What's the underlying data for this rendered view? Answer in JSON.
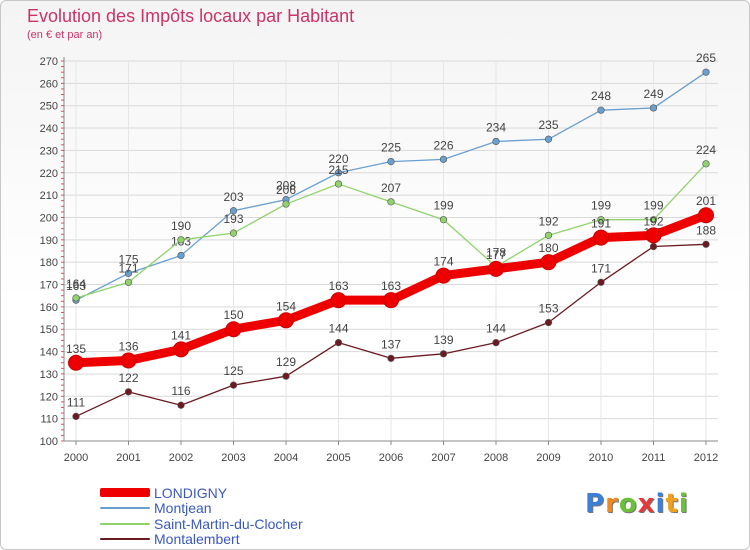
{
  "chart_data": {
    "type": "line",
    "title": "Evolution des Impôts locaux par Habitant",
    "subtitle": "(en € et par an)",
    "xlabel": "",
    "ylabel": "",
    "ylim": [
      100,
      270
    ],
    "yticks": [
      100,
      110,
      120,
      130,
      140,
      150,
      160,
      170,
      180,
      190,
      200,
      210,
      220,
      230,
      240,
      250,
      260,
      270
    ],
    "categories": [
      "2000",
      "2001",
      "2002",
      "2003",
      "2004",
      "2005",
      "2006",
      "2007",
      "2008",
      "2009",
      "2010",
      "2011",
      "2012"
    ],
    "grid": true,
    "series": [
      {
        "name": "Montjean",
        "color": "#6a9fd0",
        "emphasis": false,
        "values": [
          163,
          175,
          183,
          203,
          208,
          220,
          225,
          226,
          234,
          235,
          248,
          249,
          265
        ]
      },
      {
        "name": "Saint-Martin-du-Clocher",
        "color": "#8fd36a",
        "emphasis": false,
        "values": [
          164,
          171,
          190,
          193,
          206,
          215,
          207,
          199,
          178,
          192,
          199,
          199,
          224
        ]
      },
      {
        "name": "Montalembert",
        "color": "#6b1a22",
        "emphasis": false,
        "values": [
          111,
          122,
          116,
          125,
          129,
          144,
          137,
          139,
          144,
          153,
          171,
          187,
          188
        ]
      },
      {
        "name": "LONDIGNY",
        "color": "#ee0000",
        "emphasis": true,
        "values": [
          135,
          136,
          141,
          150,
          154,
          163,
          163,
          174,
          177,
          180,
          191,
          192,
          201
        ]
      }
    ],
    "legend_order": [
      "LONDIGNY",
      "Montjean",
      "Saint-Martin-du-Clocher",
      "Montalembert"
    ],
    "legend_position": "bottom-left"
  },
  "logo": {
    "letters": [
      "P",
      "r",
      "o",
      "x",
      "i",
      "t",
      "i"
    ],
    "colors": [
      "#3b7fd8",
      "#f08a20",
      "#6cbf3a",
      "#e23b3b",
      "#3b7fd8",
      "#f0a020",
      "#6cbf3a"
    ]
  }
}
